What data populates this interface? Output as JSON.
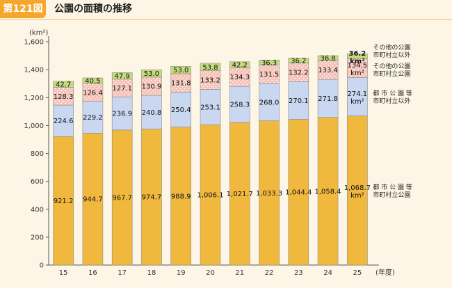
{
  "header": {
    "badge": "第121図",
    "title": "公園の面積の推移"
  },
  "colors": {
    "urban": "#f0b93d",
    "prefectural": "#c9d7f0",
    "other_municipal": "#f6c3b8",
    "other_non_municipal": "#c5dc7c",
    "badge": "#f4a72c"
  },
  "chart_data": {
    "type": "bar",
    "stacked": true,
    "unit_label": "(km²)",
    "x_unit": "(年度)",
    "categories": [
      "15",
      "16",
      "17",
      "18",
      "19",
      "20",
      "21",
      "22",
      "23",
      "24",
      "25"
    ],
    "yticks": [
      "0",
      "200",
      "400",
      "600",
      "800",
      "1,000",
      "1,200",
      "1,400",
      "1,600"
    ],
    "ylim": [
      0,
      1600
    ],
    "grid": false,
    "series": [
      {
        "key": "urban",
        "name": "都 市 公 園 等\n市町村立公園",
        "color": "#f0b93d",
        "values": [
          921.2,
          944.7,
          967.7,
          974.7,
          988.9,
          1006.1,
          1021.7,
          1033.3,
          1044.4,
          1058.4,
          1068.7
        ],
        "labels": [
          "921.2",
          "944.7",
          "967.7",
          "974.7",
          "988.9",
          "1,006.1",
          "1,021.7",
          "1,033.3",
          "1,044.4",
          "1,058.4",
          "1,068.7"
        ],
        "last_label_extra": "km²"
      },
      {
        "key": "prefectural",
        "name": "都 市 公 園 等\n市町村立以外",
        "color": "#c9d7f0",
        "values": [
          224.6,
          229.2,
          236.9,
          240.8,
          250.4,
          253.1,
          258.3,
          268.0,
          270.1,
          271.8,
          274.1
        ],
        "labels": [
          "224.6",
          "229.2",
          "236.9",
          "240.8",
          "250.4",
          "253.1",
          "258.3",
          "268.0",
          "270.1",
          "271.8",
          "274.1"
        ],
        "last_label_extra": "km²"
      },
      {
        "key": "other_municipal",
        "name": "その他の公園\n市町村立公園",
        "color": "#f6c3b8",
        "values": [
          128.3,
          126.4,
          127.1,
          130.9,
          131.8,
          133.2,
          134.3,
          131.5,
          132.2,
          133.4,
          134.5
        ],
        "labels": [
          "128.3",
          "126.4",
          "127.1",
          "130.9",
          "131.8",
          "133.2",
          "134.3",
          "131.5",
          "132.2",
          "133.4",
          "134.5"
        ],
        "last_label_extra": "km²"
      },
      {
        "key": "other_non_municipal",
        "name": "その他の公園\n市町村立以外",
        "color": "#c5dc7c",
        "values": [
          42.7,
          40.5,
          47.9,
          53.0,
          53.0,
          53.8,
          42.2,
          36.3,
          36.2,
          36.8,
          36.2
        ],
        "labels": [
          "42.7",
          "40.5",
          "47.9",
          "53.0",
          "53.0",
          "53.8",
          "42.2",
          "36.3",
          "36.2",
          "36.8",
          "36.2"
        ],
        "last_label_extra": "km²"
      }
    ]
  }
}
